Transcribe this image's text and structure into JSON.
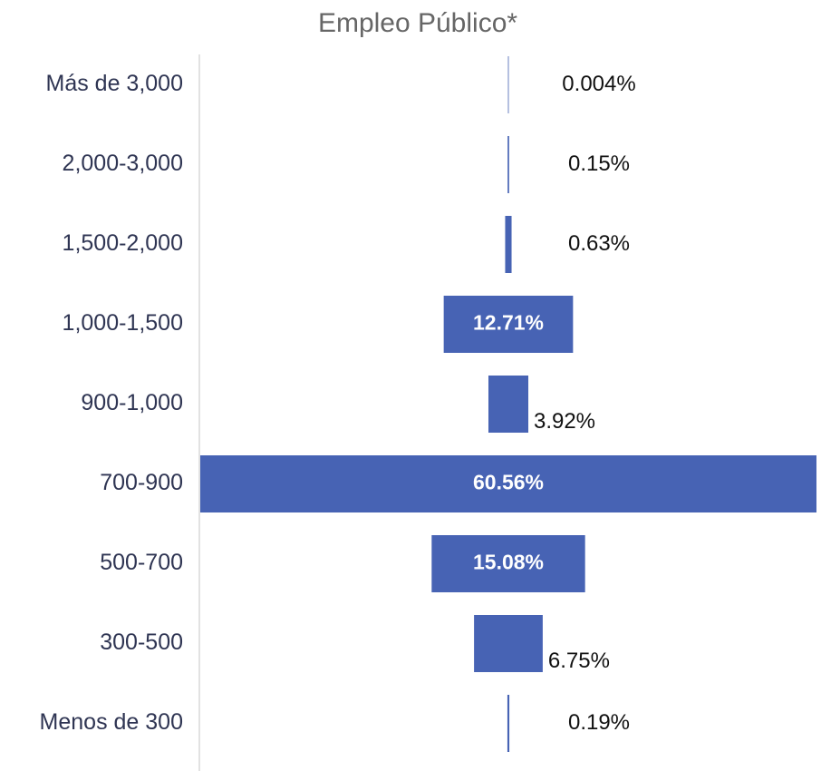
{
  "chart_data": {
    "type": "funnel",
    "title": "Empleo Público*",
    "categories": [
      "Más de 3,000",
      "2,000-3,000",
      "1,500-2,000",
      "1,000-1,500",
      "900-1,000",
      "700-900",
      "500-700",
      "300-500",
      "Menos de 300"
    ],
    "values": [
      0.004,
      0.15,
      0.63,
      12.71,
      3.92,
      60.56,
      15.08,
      6.75,
      0.19
    ],
    "value_labels": [
      "0.004%",
      "0.15%",
      "0.63%",
      "12.71%",
      "3.92%",
      "60.56%",
      "15.08%",
      "6.75%",
      "0.19%"
    ],
    "color": "#4763b4"
  }
}
